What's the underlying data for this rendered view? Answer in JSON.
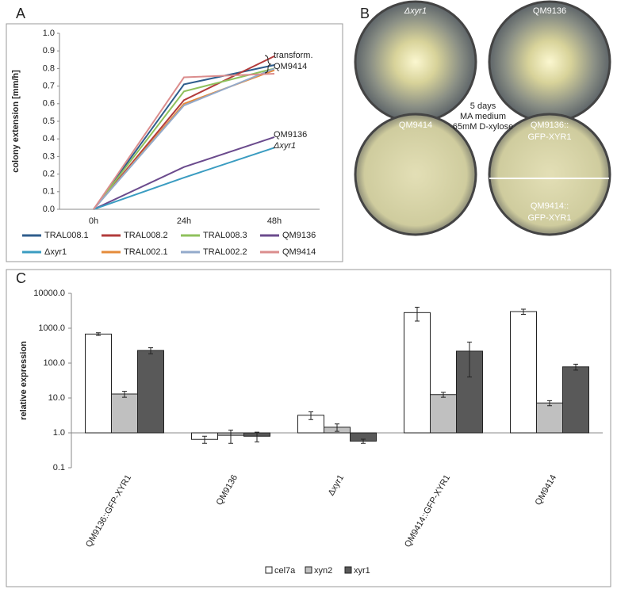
{
  "chart_data": [
    {
      "type": "line",
      "panel": "A",
      "y_label": "colony extension [mm/h]",
      "categories": [
        "0h",
        "24h",
        "48h"
      ],
      "ylim": [
        0,
        1
      ],
      "yticks": [
        {
          "value": 0,
          "label": "0.0"
        },
        0.1,
        0.2,
        0.3,
        0.4,
        0.5,
        0.6,
        0.7,
        0.8,
        0.9,
        {
          "value": 1,
          "label": "1.0"
        }
      ],
      "series": [
        {
          "name": "TRAL008.1",
          "color": "#2f5d8c",
          "values": [
            0,
            0.71,
            0.82
          ]
        },
        {
          "name": "TRAL008.2",
          "color": "#b23b3b",
          "values": [
            0,
            0.62,
            0.87
          ]
        },
        {
          "name": "TRAL008.3",
          "color": "#8fc15c",
          "values": [
            0,
            0.67,
            0.8
          ]
        },
        {
          "name": "QM9136",
          "color": "#6b4b8d",
          "values": [
            0,
            0.24,
            0.41
          ]
        },
        {
          "name": "Δxyr1",
          "color": "#3a9cc1",
          "values": [
            0,
            0.18,
            0.35
          ]
        },
        {
          "name": "TRAL002.1",
          "color": "#e58b3a",
          "values": [
            0,
            0.6,
            0.79
          ]
        },
        {
          "name": "TRAL002.2",
          "color": "#93aacb",
          "values": [
            0,
            0.59,
            0.8
          ]
        },
        {
          "name": "QM9414",
          "color": "#db8d8d",
          "values": [
            0,
            0.75,
            0.77
          ]
        }
      ],
      "annotations": [
        "transform.",
        "QM9414",
        "QM9136",
        "Δxyr1"
      ]
    },
    {
      "type": "bar",
      "panel": "C",
      "y_label": "relative expression",
      "log_scale": true,
      "categories": [
        "QM9136::GFP-XYR1",
        "QM9136",
        "Δxyr1",
        "QM9414::GFP-XYR1",
        "QM9414"
      ],
      "ylim": [
        0.1,
        10000
      ],
      "yticks": [
        0.1,
        {
          "value": 1,
          "label": "1.0"
        },
        {
          "value": 10,
          "label": "10.0"
        },
        {
          "value": 100,
          "label": "100.0"
        },
        {
          "value": 1000,
          "label": "1000.0"
        },
        {
          "value": 10000,
          "label": "10000.0"
        }
      ],
      "series": [
        {
          "name": "cel7a",
          "color": "#ffffff",
          "values": [
            680,
            0.65,
            3.2,
            2800,
            3000
          ],
          "errors": [
            60,
            0.15,
            0.8,
            1200,
            500
          ]
        },
        {
          "name": "xyn2",
          "color": "#c0c0c0",
          "values": [
            13,
            0.85,
            1.45,
            12.5,
            7.2
          ],
          "errors": [
            2.5,
            0.35,
            0.35,
            2,
            1.2
          ]
        },
        {
          "name": "xyr1",
          "color": "#595959",
          "values": [
            230,
            0.8,
            0.58,
            220,
            78
          ],
          "errors": [
            45,
            0.25,
            0.08,
            180,
            15
          ]
        }
      ]
    }
  ],
  "panel_b": {
    "label": "B",
    "plate_labels": [
      "Δxyr1",
      "QM9136",
      "QM9414",
      "QM9136::",
      "GFP-XYR1",
      "QM9414::",
      "GFP-XYR1"
    ],
    "center_text": [
      "5 days",
      "MA medium",
      "65mM D-xylose"
    ]
  }
}
